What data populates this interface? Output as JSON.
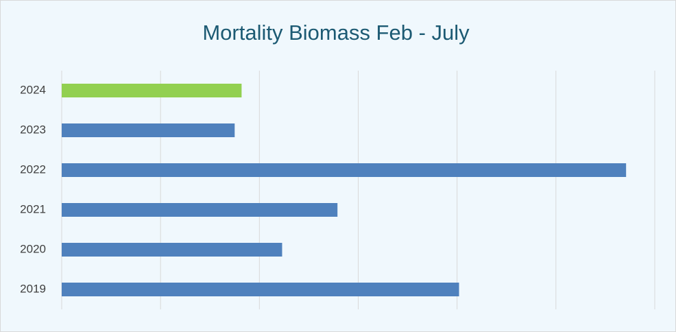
{
  "chart_data": {
    "type": "bar",
    "orientation": "horizontal",
    "title": "Mortality Biomass Feb - July",
    "categories": [
      "2024",
      "2023",
      "2022",
      "2021",
      "2020",
      "2019"
    ],
    "values": [
      1.82,
      1.75,
      5.71,
      2.79,
      2.23,
      4.02
    ],
    "colors": [
      "#92d050",
      "#4f81bd",
      "#4f81bd",
      "#4f81bd",
      "#4f81bd",
      "#4f81bd"
    ],
    "xlim": [
      0,
      6
    ],
    "xticks": [
      0,
      1,
      2,
      3,
      4,
      5,
      6
    ],
    "grid": true
  }
}
